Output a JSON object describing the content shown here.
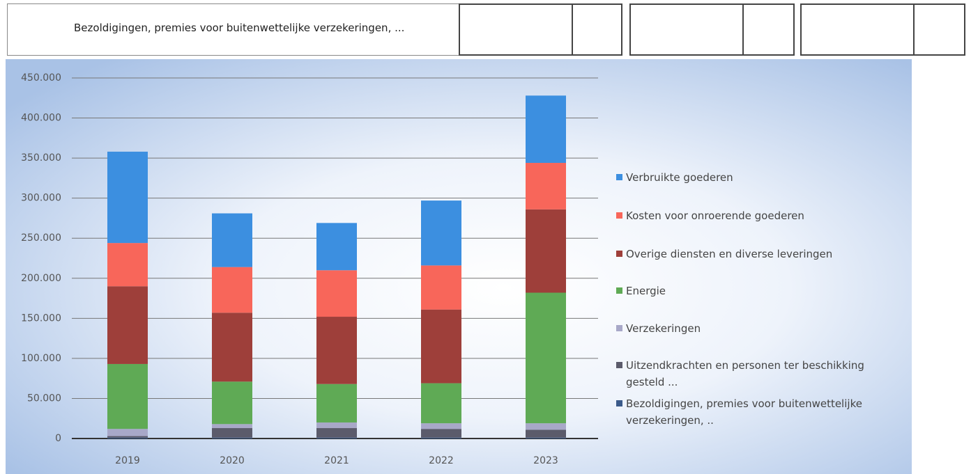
{
  "header": {
    "cell": "Bezoldigingen, premies voor buitenwettelijke verzekeringen, ..."
  },
  "chart_data": {
    "type": "stacked_bar",
    "categories": [
      "2019",
      "2020",
      "2021",
      "2022",
      "2023"
    ],
    "series": [
      {
        "name": "Bezoldigingen, premies voor buitenwettelijke verzekeringen, ..",
        "color": "#3b5a8a",
        "values": [
          1000,
          1000,
          1000,
          1000,
          1000
        ]
      },
      {
        "name": "Uitzendkrachten en personen ter beschikking gesteld ...",
        "color": "#5b5b6b",
        "values": [
          2000,
          12000,
          12000,
          11000,
          10000
        ]
      },
      {
        "name": "Verzekeringen",
        "color": "#a8a8c8",
        "values": [
          9000,
          5000,
          7000,
          7000,
          8000
        ]
      },
      {
        "name": "Energie",
        "color": "#5faa55",
        "values": [
          81000,
          53000,
          48000,
          50000,
          163000
        ]
      },
      {
        "name": "Overige diensten en diverse leveringen",
        "color": "#9e3f3a",
        "values": [
          97000,
          86000,
          84000,
          92000,
          104000
        ]
      },
      {
        "name": "Kosten voor onroerende goederen",
        "color": "#f8665a",
        "values": [
          54000,
          57000,
          58000,
          55000,
          58000
        ]
      },
      {
        "name": "Verbruikte goederen",
        "color": "#3c8fe0",
        "values": [
          114000,
          67000,
          59000,
          81000,
          84000
        ]
      }
    ],
    "ylim": [
      0,
      450000
    ],
    "yticks": [
      0,
      {
        "value": 50000,
        "label": "50.000"
      },
      {
        "value": 100000,
        "label": "100.000"
      },
      {
        "value": 150000,
        "label": "150.000"
      },
      {
        "value": 200000,
        "label": "200.000"
      },
      {
        "value": 250000,
        "label": "250.000"
      },
      {
        "value": 300000,
        "label": "300.000"
      },
      {
        "value": 350000,
        "label": "350.000"
      },
      {
        "value": 400000,
        "label": "400.000"
      },
      {
        "value": 450000,
        "label": "450.000"
      }
    ],
    "grid": true,
    "legend": "right"
  }
}
